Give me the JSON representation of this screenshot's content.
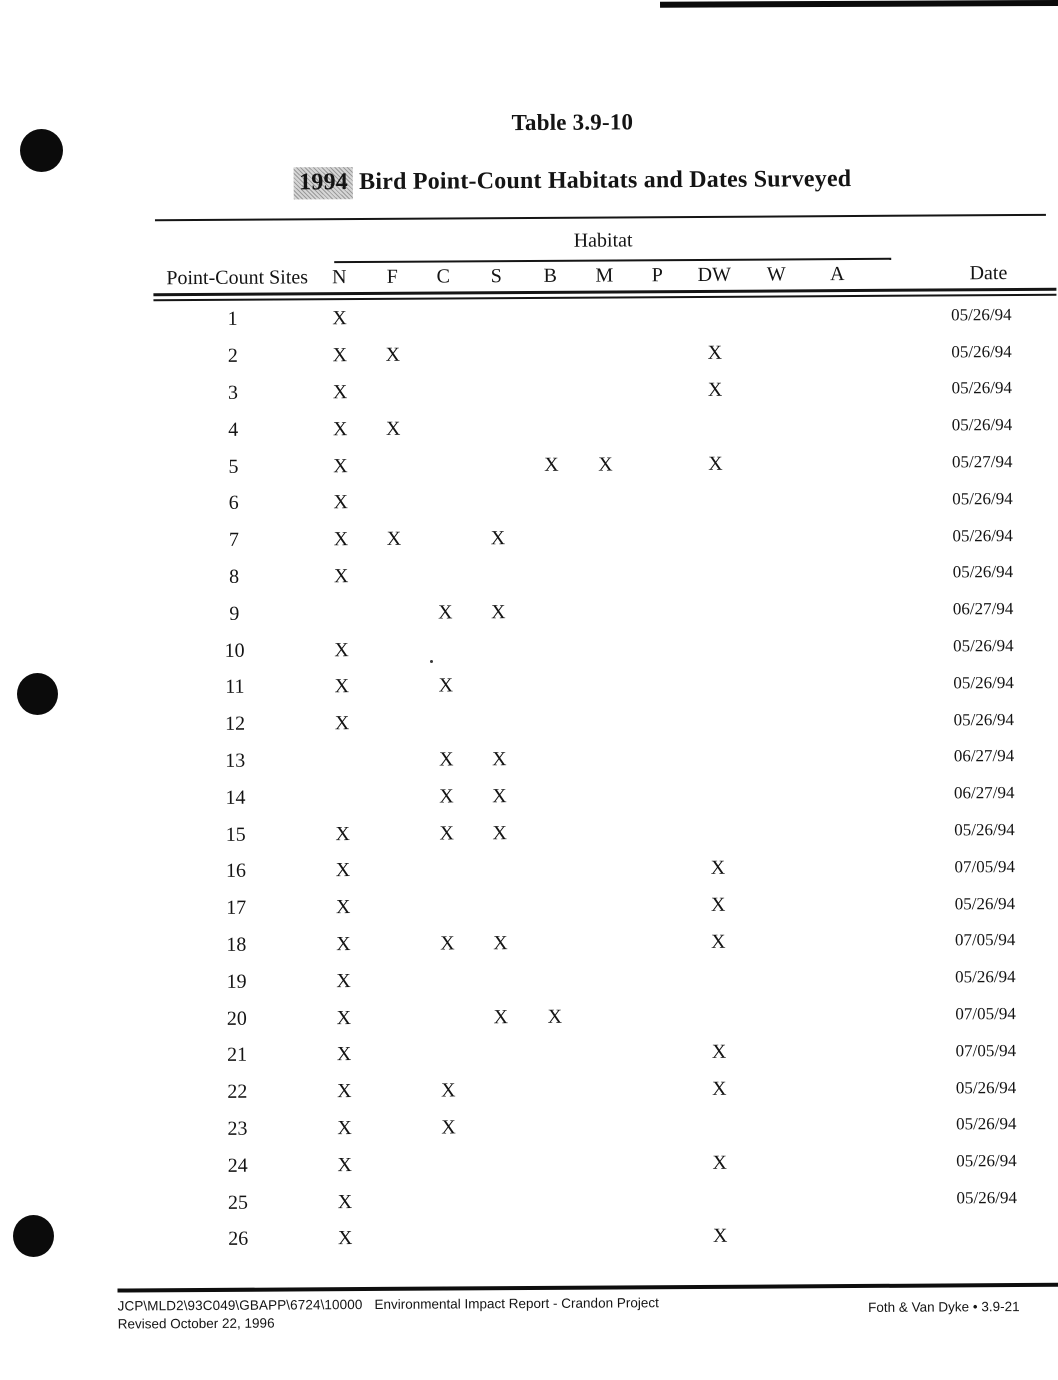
{
  "page_header": {
    "table_label": "Table 3.9-10",
    "title_year": "1994",
    "title_rest": "Bird Point-Count Habitats and Dates Surveyed"
  },
  "table": {
    "group_header": "Habitat",
    "site_column_header": "Point-Count Sites",
    "habitat_columns": [
      "N",
      "F",
      "C",
      "S",
      "B",
      "M",
      "P",
      "DW",
      "W",
      "A"
    ],
    "date_column_header": "Date",
    "mark_symbol": "X",
    "rows": [
      {
        "site": "1",
        "marks": [
          "N"
        ],
        "date": "05/26/94"
      },
      {
        "site": "2",
        "marks": [
          "N",
          "F",
          "DW"
        ],
        "date": "05/26/94"
      },
      {
        "site": "3",
        "marks": [
          "N",
          "DW"
        ],
        "date": "05/26/94"
      },
      {
        "site": "4",
        "marks": [
          "N",
          "F"
        ],
        "date": "05/26/94"
      },
      {
        "site": "5",
        "marks": [
          "N",
          "B",
          "M",
          "DW"
        ],
        "date": "05/27/94"
      },
      {
        "site": "6",
        "marks": [
          "N"
        ],
        "date": "05/26/94"
      },
      {
        "site": "7",
        "marks": [
          "N",
          "F",
          "S"
        ],
        "date": "05/26/94"
      },
      {
        "site": "8",
        "marks": [
          "N"
        ],
        "date": "05/26/94"
      },
      {
        "site": "9",
        "marks": [
          "C",
          "S"
        ],
        "date": "06/27/94"
      },
      {
        "site": "10",
        "marks": [
          "N"
        ],
        "date": "05/26/94"
      },
      {
        "site": "11",
        "marks": [
          "N",
          "C"
        ],
        "date": "05/26/94"
      },
      {
        "site": "12",
        "marks": [
          "N"
        ],
        "date": "05/26/94"
      },
      {
        "site": "13",
        "marks": [
          "C",
          "S"
        ],
        "date": "06/27/94"
      },
      {
        "site": "14",
        "marks": [
          "C",
          "S"
        ],
        "date": "06/27/94"
      },
      {
        "site": "15",
        "marks": [
          "N",
          "C",
          "S"
        ],
        "date": "05/26/94"
      },
      {
        "site": "16",
        "marks": [
          "N",
          "DW"
        ],
        "date": "07/05/94"
      },
      {
        "site": "17",
        "marks": [
          "N",
          "DW"
        ],
        "date": "05/26/94"
      },
      {
        "site": "18",
        "marks": [
          "N",
          "C",
          "S",
          "DW"
        ],
        "date": "07/05/94"
      },
      {
        "site": "19",
        "marks": [
          "N"
        ],
        "date": "05/26/94"
      },
      {
        "site": "20",
        "marks": [
          "N",
          "S",
          "B"
        ],
        "date": "07/05/94"
      },
      {
        "site": "21",
        "marks": [
          "N",
          "DW"
        ],
        "date": "07/05/94"
      },
      {
        "site": "22",
        "marks": [
          "N",
          "C",
          "DW"
        ],
        "date": "05/26/94"
      },
      {
        "site": "23",
        "marks": [
          "N",
          "C"
        ],
        "date": "05/26/94"
      },
      {
        "site": "24",
        "marks": [
          "N",
          "DW"
        ],
        "date": "05/26/94"
      },
      {
        "site": "25",
        "marks": [
          "N"
        ],
        "date": "05/26/94"
      },
      {
        "site": "26",
        "marks": [
          "N",
          "DW"
        ],
        "date": ""
      }
    ]
  },
  "footer": {
    "doc_code": "JCP\\MLD2\\93C049\\GBAPP\\6724\\10000",
    "doc_title": "Environmental Impact Report - Crandon Project",
    "revision": "Revised October 22, 1996",
    "right_text": "Foth & Van Dyke • 3.9-21"
  },
  "colors": {
    "ink": "#141414",
    "highlight_gray": "#b9b9b9"
  }
}
